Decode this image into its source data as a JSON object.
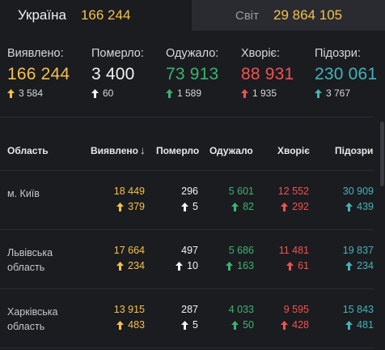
{
  "tabs": [
    {
      "name": "Україна",
      "count": "166 244"
    },
    {
      "name": "Світ",
      "count": "29 864 105"
    }
  ],
  "summary": [
    {
      "label": "Виявлено:",
      "value": "166 244",
      "delta": "3 584",
      "color": "#f5c14a",
      "arrow": "#f5c14a"
    },
    {
      "label": "Померло:",
      "value": "3 400",
      "delta": "60",
      "color": "#f2f2f2",
      "arrow": "#f2f2f2"
    },
    {
      "label": "Одужало:",
      "value": "73 913",
      "delta": "1 589",
      "color": "#3cb371",
      "arrow": "#3cb371"
    },
    {
      "label": "Хворіє:",
      "value": "88 931",
      "delta": "1 935",
      "color": "#ef5350",
      "arrow": "#ef5350"
    },
    {
      "label": "Підозри:",
      "value": "230 061",
      "delta": "3 767",
      "color": "#42b4b8",
      "arrow": "#42b4b8"
    }
  ],
  "table": {
    "headers": {
      "region": "Область",
      "confirmed": "Виявлено",
      "deaths": "Померло",
      "recovered": "Одужало",
      "sick": "Хворіє",
      "suspected": "Підозри"
    },
    "sort_icon": "arrow-down-icon",
    "rows": [
      {
        "region": "м. Київ",
        "confirmed": "18 449",
        "confirmed_d": "379",
        "deaths": "296",
        "deaths_d": "5",
        "recovered": "5 601",
        "recovered_d": "82",
        "sick": "12 552",
        "sick_d": "292",
        "suspected": "30 909",
        "suspected_d": "439"
      },
      {
        "region": "Львівська область",
        "confirmed": "17 664",
        "confirmed_d": "234",
        "deaths": "497",
        "deaths_d": "10",
        "recovered": "5 686",
        "recovered_d": "163",
        "sick": "11 481",
        "sick_d": "61",
        "suspected": "19 837",
        "suspected_d": "234"
      },
      {
        "region": "Харківська область",
        "confirmed": "13 915",
        "confirmed_d": "483",
        "deaths": "287",
        "deaths_d": "5",
        "recovered": "4 033",
        "recovered_d": "50",
        "sick": "9 595",
        "sick_d": "428",
        "suspected": "15 843",
        "suspected_d": "481"
      }
    ]
  },
  "colors": {
    "confirmed": "#f5c14a",
    "deaths": "#f2f2f2",
    "recovered": "#3cb371",
    "sick": "#ef5350",
    "suspected": "#42b4b8"
  }
}
